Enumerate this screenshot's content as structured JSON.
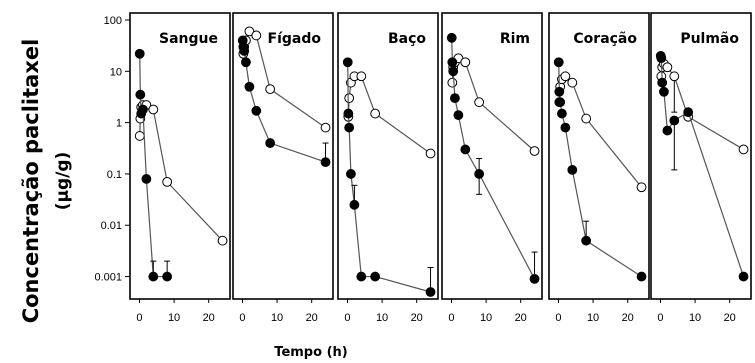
{
  "chart_data": {
    "type": "scatter",
    "ylabel_line1": "Concentração paclitaxel",
    "ylabel_line2": "(µg/g)",
    "xlabel": "Tempo (h)",
    "yscale": "log",
    "ylim": [
      0.0005,
      100
    ],
    "xlim": [
      -1,
      25
    ],
    "y_ticks": [
      100,
      10,
      1,
      0.1,
      0.01,
      0.001
    ],
    "y_tick_labels": [
      "100",
      "10",
      "1",
      "0.1",
      "0.01",
      "0.001"
    ],
    "x_ticks": [
      0,
      10,
      20
    ],
    "x_tick_labels": [
      "0",
      "10",
      "20"
    ],
    "series_styles": {
      "filled": "#000000",
      "open": "#ffffff"
    },
    "panels": [
      {
        "title": "Sangue",
        "filled": {
          "x": [
            0.08,
            0.25,
            0.5,
            1,
            2,
            4,
            8
          ],
          "y": [
            22,
            3.5,
            1.5,
            1.8,
            0.08,
            0.001,
            0.001
          ]
        },
        "open": {
          "x": [
            0.08,
            0.25,
            0.5,
            1,
            2,
            4,
            8,
            24
          ],
          "y": [
            0.55,
            1.2,
            2.0,
            2.2,
            2.2,
            1.8,
            0.07,
            0.005
          ]
        },
        "filled_err": [
          {
            "x": 4,
            "y": 0.001,
            "top": 0.002
          },
          {
            "x": 8,
            "y": 0.001,
            "top": 0.002
          }
        ],
        "open_err": []
      },
      {
        "title": "Fígado",
        "filled": {
          "x": [
            0.08,
            0.25,
            0.5,
            1,
            2,
            4,
            8,
            24
          ],
          "y": [
            40,
            30,
            25,
            15,
            5,
            1.7,
            0.4,
            0.17
          ]
        },
        "open": {
          "x": [
            0.25,
            0.5,
            1,
            2,
            4,
            8,
            24
          ],
          "y": [
            22,
            30,
            40,
            60,
            50,
            4.5,
            0.8
          ]
        },
        "filled_err": [
          {
            "x": 24,
            "y": 0.17,
            "top": 0.4
          }
        ],
        "open_err": []
      },
      {
        "title": "Baço",
        "filled": {
          "x": [
            0.08,
            0.25,
            0.5,
            1,
            2,
            4,
            8,
            24
          ],
          "y": [
            15,
            1.5,
            0.8,
            0.1,
            0.025,
            0.001,
            0.001,
            0.0005
          ]
        },
        "open": {
          "x": [
            0.25,
            0.5,
            1,
            2,
            4,
            8,
            24
          ],
          "y": [
            1.3,
            3,
            6,
            8,
            8,
            1.5,
            0.25
          ]
        },
        "filled_err": [
          {
            "x": 2,
            "y": 0.025,
            "top": 0.06
          },
          {
            "x": 24,
            "y": 0.0005,
            "top": 0.0015
          }
        ],
        "open_err": []
      },
      {
        "title": "Rim",
        "filled": {
          "x": [
            0.08,
            0.25,
            0.5,
            1,
            2,
            4,
            8,
            24
          ],
          "y": [
            45,
            15,
            10,
            3,
            1.4,
            0.3,
            0.1,
            0.0009
          ]
        },
        "open": {
          "x": [
            0.25,
            0.5,
            1,
            2,
            4,
            8,
            24
          ],
          "y": [
            6,
            12,
            15,
            18,
            15,
            2.5,
            0.28
          ]
        },
        "filled_err": [
          {
            "x": 8,
            "y": 0.1,
            "top": 0.2,
            "bottom": 0.04
          },
          {
            "x": 24,
            "y": 0.0009,
            "top": 0.003
          }
        ],
        "open_err": []
      },
      {
        "title": "Coração",
        "filled": {
          "x": [
            0.08,
            0.25,
            0.5,
            1,
            2,
            4,
            8,
            24
          ],
          "y": [
            15,
            4,
            2.5,
            1.5,
            0.8,
            0.12,
            0.005,
            0.001
          ]
        },
        "open": {
          "x": [
            0.25,
            0.5,
            1,
            2,
            4,
            8,
            24
          ],
          "y": [
            2.5,
            5,
            7,
            8,
            6,
            1.2,
            0.055
          ]
        },
        "filled_err": [
          {
            "x": 8,
            "y": 0.005,
            "top": 0.012
          }
        ],
        "open_err": []
      },
      {
        "title": "Pulmão",
        "filled": {
          "x": [
            0.08,
            0.25,
            0.5,
            1,
            2,
            4,
            8,
            24
          ],
          "y": [
            20,
            18,
            6,
            4,
            0.7,
            1.1,
            1.6,
            0.001
          ]
        },
        "open": {
          "x": [
            0.25,
            0.5,
            1,
            2,
            4,
            8,
            24
          ],
          "y": [
            8,
            12,
            14,
            12,
            8,
            1.3,
            0.3
          ]
        },
        "filled_err": [
          {
            "x": 4,
            "y": 1.1,
            "bottom": 0.12
          }
        ],
        "open_err": [
          {
            "x": 4,
            "y": 8,
            "bottom": 1.6
          }
        ]
      }
    ]
  }
}
